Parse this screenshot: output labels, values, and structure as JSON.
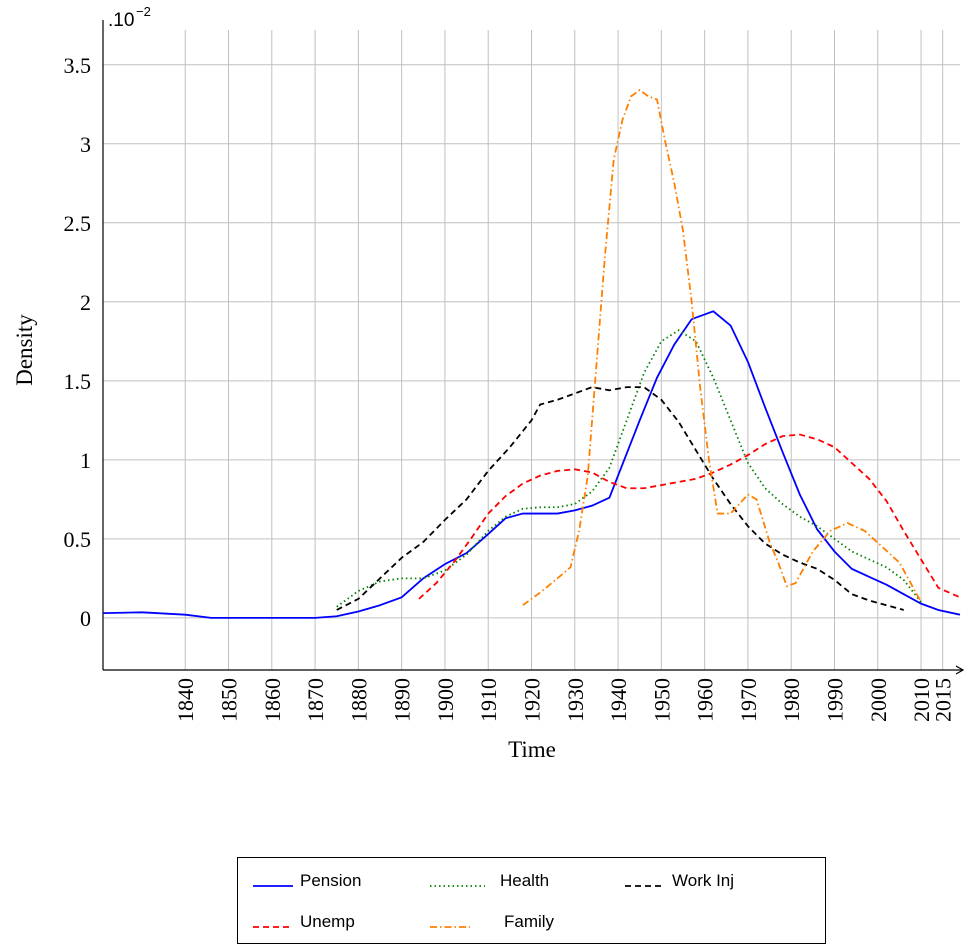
{
  "chart_data": {
    "type": "line",
    "y_multiplier": ".10",
    "y_multiplier_exponent": "−2",
    "xlabel": "Time",
    "ylabel": "Density",
    "xlim": [
      1821,
      2019
    ],
    "ylim": [
      -0.33,
      3.72
    ],
    "xticks": [
      1840,
      1850,
      1860,
      1870,
      1880,
      1890,
      1900,
      1910,
      1920,
      1930,
      1940,
      1950,
      1960,
      1970,
      1980,
      1990,
      2000,
      2010,
      2015
    ],
    "yticks": [
      0,
      0.5,
      1,
      1.5,
      2,
      2.5,
      3,
      3.5
    ],
    "grid": true,
    "legend": "bottom",
    "series": [
      {
        "name": "Pension",
        "color": "#0000ff",
        "dash": "solid",
        "x": [
          1821,
          1830,
          1840,
          1846,
          1870,
          1875,
          1880,
          1885,
          1890,
          1895,
          1900,
          1905,
          1910,
          1914,
          1918,
          1926,
          1930,
          1934,
          1938,
          1941,
          1945,
          1949,
          1953,
          1957,
          1962,
          1966,
          1970,
          1974,
          1978,
          1982,
          1986,
          1990,
          1994,
          1998,
          2002,
          2006,
          2010,
          2014,
          2019
        ],
        "values": [
          0.03,
          0.035,
          0.02,
          0.0,
          0.0,
          0.01,
          0.04,
          0.08,
          0.13,
          0.25,
          0.34,
          0.41,
          0.53,
          0.63,
          0.66,
          0.66,
          0.68,
          0.71,
          0.76,
          0.97,
          1.25,
          1.52,
          1.73,
          1.89,
          1.94,
          1.85,
          1.62,
          1.33,
          1.05,
          0.78,
          0.56,
          0.42,
          0.31,
          0.26,
          0.21,
          0.15,
          0.09,
          0.05,
          0.02
        ]
      },
      {
        "name": "Health",
        "color": "#008000",
        "dash": "dotted",
        "x": [
          1875,
          1880,
          1885,
          1890,
          1895,
          1900,
          1905,
          1910,
          1914,
          1918,
          1922,
          1926,
          1930,
          1934,
          1938,
          1942,
          1946,
          1950,
          1954,
          1958,
          1962,
          1966,
          1970,
          1974,
          1978,
          1982,
          1986,
          1990,
          1994,
          1998,
          2002,
          2006,
          2010
        ],
        "values": [
          0.07,
          0.17,
          0.23,
          0.25,
          0.25,
          0.3,
          0.4,
          0.55,
          0.64,
          0.69,
          0.7,
          0.7,
          0.72,
          0.8,
          0.95,
          1.25,
          1.55,
          1.75,
          1.82,
          1.75,
          1.52,
          1.25,
          0.98,
          0.82,
          0.72,
          0.64,
          0.58,
          0.5,
          0.42,
          0.37,
          0.32,
          0.24,
          0.1
        ]
      },
      {
        "name": "Work Inj",
        "color": "#000000",
        "dash": "dashed",
        "x": [
          1875,
          1880,
          1885,
          1890,
          1895,
          1900,
          1905,
          1910,
          1915,
          1920,
          1922,
          1926,
          1930,
          1934,
          1938,
          1942,
          1946,
          1950,
          1954,
          1958,
          1962,
          1966,
          1970,
          1974,
          1978,
          1982,
          1986,
          1990,
          1994,
          1998,
          2002,
          2006
        ],
        "values": [
          0.05,
          0.12,
          0.25,
          0.38,
          0.48,
          0.62,
          0.75,
          0.93,
          1.08,
          1.25,
          1.35,
          1.38,
          1.42,
          1.46,
          1.44,
          1.46,
          1.46,
          1.38,
          1.24,
          1.06,
          0.88,
          0.72,
          0.58,
          0.47,
          0.4,
          0.35,
          0.31,
          0.24,
          0.15,
          0.11,
          0.08,
          0.05
        ]
      },
      {
        "name": "Unemp",
        "color": "#ff0000",
        "dash": "dashed",
        "x": [
          1894,
          1898,
          1902,
          1906,
          1910,
          1914,
          1918,
          1922,
          1926,
          1930,
          1934,
          1938,
          1942,
          1946,
          1950,
          1954,
          1958,
          1962,
          1966,
          1970,
          1974,
          1978,
          1982,
          1986,
          1990,
          1994,
          1998,
          2002,
          2006,
          2010,
          2014,
          2019
        ],
        "values": [
          0.12,
          0.22,
          0.35,
          0.5,
          0.66,
          0.77,
          0.85,
          0.9,
          0.93,
          0.94,
          0.92,
          0.86,
          0.82,
          0.82,
          0.84,
          0.86,
          0.88,
          0.92,
          0.97,
          1.03,
          1.1,
          1.15,
          1.16,
          1.13,
          1.08,
          0.98,
          0.88,
          0.74,
          0.55,
          0.37,
          0.19,
          0.13
        ]
      },
      {
        "name": "Family",
        "color": "#ff8000",
        "dash": "dashdot",
        "x": [
          1918,
          1922,
          1926,
          1929,
          1931,
          1933,
          1935,
          1937,
          1939,
          1941,
          1943,
          1945,
          1947,
          1949,
          1951,
          1953,
          1955,
          1957,
          1959,
          1961,
          1963,
          1966,
          1970,
          1972,
          1975,
          1977,
          1979,
          1981,
          1985,
          1989,
          1993,
          1997,
          2001,
          2005,
          2010
        ],
        "values": [
          0.08,
          0.16,
          0.25,
          0.32,
          0.55,
          0.9,
          1.6,
          2.3,
          2.9,
          3.15,
          3.3,
          3.34,
          3.3,
          3.28,
          3.0,
          2.75,
          2.45,
          2.0,
          1.45,
          1.0,
          0.66,
          0.66,
          0.78,
          0.75,
          0.48,
          0.35,
          0.2,
          0.22,
          0.42,
          0.55,
          0.6,
          0.55,
          0.45,
          0.35,
          0.1
        ]
      }
    ]
  }
}
